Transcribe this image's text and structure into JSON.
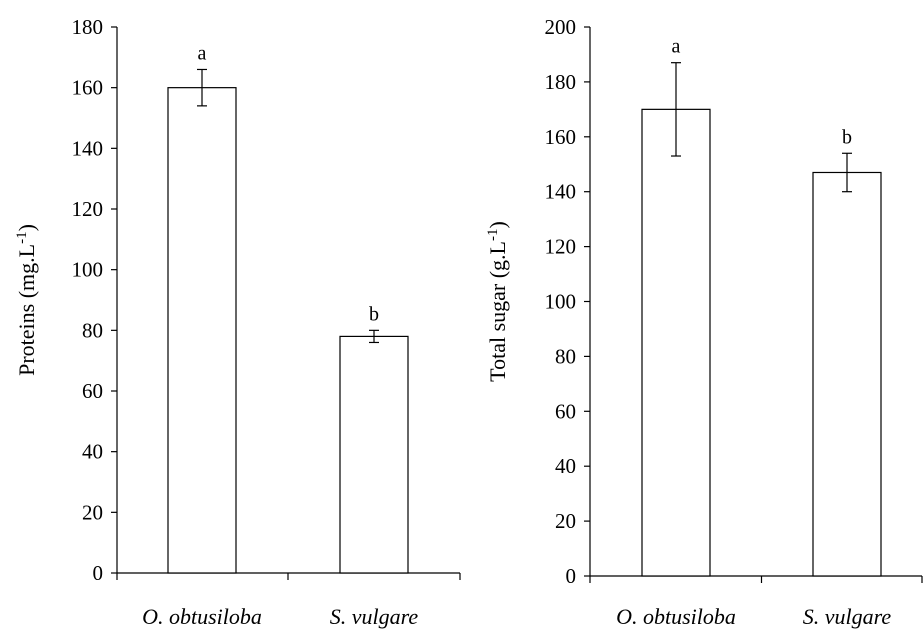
{
  "chart_data": [
    {
      "type": "bar",
      "categories": [
        "O. obtusiloba",
        "S. vulgare"
      ],
      "values": [
        160,
        78
      ],
      "errors": [
        6,
        2
      ],
      "significance": [
        "a",
        "b"
      ],
      "ylabel": "Proteins (mg.L",
      "ylabel_superscript": "-1",
      "ylabel_close": ")",
      "ylim": [
        0,
        180
      ],
      "yticks": [
        "0",
        "20",
        "40",
        "60",
        "80",
        "100",
        "120",
        "140",
        "160",
        "180"
      ],
      "bar_fill": "#ffffff",
      "bar_stroke": "#000000"
    },
    {
      "type": "bar",
      "categories": [
        "O. obtusiloba",
        "S. vulgare"
      ],
      "values": [
        170,
        147
      ],
      "errors": [
        17,
        7
      ],
      "significance": [
        "a",
        "b"
      ],
      "ylabel": "Total sugar  (g.L",
      "ylabel_superscript": "-1",
      "ylabel_close": ")",
      "ylim": [
        0,
        200
      ],
      "yticks": [
        "0",
        "20",
        "40",
        "60",
        "80",
        "100",
        "120",
        "140",
        "160",
        "180",
        "200"
      ],
      "bar_fill": "#ffffff",
      "bar_stroke": "#000000"
    }
  ]
}
